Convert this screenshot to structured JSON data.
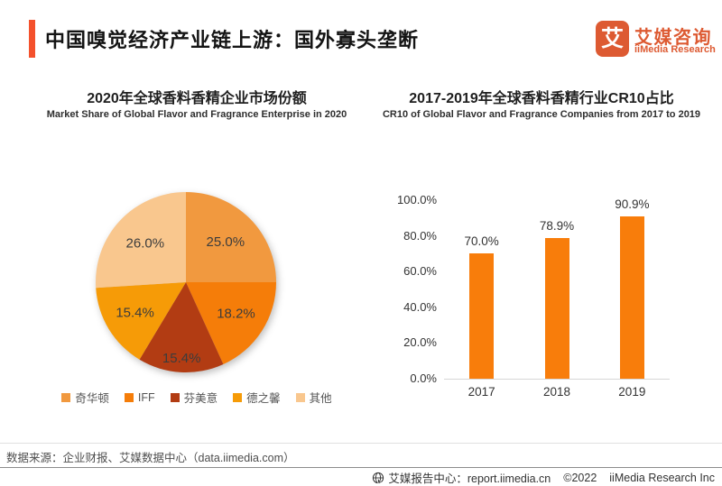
{
  "header": {
    "title": "中国嗅觉经济产业链上游：国外寡头垄断",
    "logo": {
      "glyph": "艾",
      "brand_zh": "艾媒咨询",
      "brand_en": "iiMedia Research"
    }
  },
  "pie_section": {
    "title_zh": "2020年全球香料香精企业市场份额",
    "title_en": "Market Share of Global Flavor and Fragrance Enterprise in 2020"
  },
  "bar_section": {
    "title_zh": "2017-2019年全球香料香精行业CR10占比",
    "title_en": "CR10 of Global Flavor and Fragrance Companies from 2017 to 2019"
  },
  "chart_data": [
    {
      "type": "pie",
      "title": "2020年全球香料香精企业市场份额",
      "subtitle": "Market Share of Global Flavor and Fragrance Enterprise in 2020",
      "labels": [
        "奇华顿",
        "IFF",
        "芬美意",
        "德之馨",
        "其他"
      ],
      "values": [
        25.0,
        18.2,
        15.4,
        15.4,
        26.0
      ],
      "value_labels": [
        "25.0%",
        "18.2%",
        "15.4%",
        "15.4%",
        "26.0%"
      ],
      "colors": [
        "#F1993F",
        "#F57D09",
        "#B23C13",
        "#F69B07",
        "#F9C78E"
      ],
      "start_angle_deg": -90,
      "direction": "clockwise",
      "legend_position": "bottom",
      "label_radius": [
        0.62,
        0.66,
        0.85,
        0.66,
        0.62
      ]
    },
    {
      "type": "bar",
      "title": "2017-2019年全球香料香精行业CR10占比",
      "subtitle": "CR10 of Global Flavor and Fragrance Companies from 2017 to 2019",
      "categories": [
        "2017",
        "2018",
        "2019"
      ],
      "values": [
        70.0,
        78.9,
        90.9
      ],
      "value_labels": [
        "70.0%",
        "78.9%",
        "90.9%"
      ],
      "bar_color": "#F87D0B",
      "ylim": [
        0,
        100
      ],
      "ytick_step": 20,
      "ytick_labels": [
        "0.0%",
        "20.0%",
        "40.0%",
        "60.0%",
        "80.0%",
        "100.0%"
      ],
      "grid": false,
      "legend_position": "none"
    }
  ],
  "source_note": "数据来源：企业财报、艾媒数据中心（data.iimedia.com）",
  "footer": {
    "report_center": "艾媒报告中心：report.iimedia.cn",
    "copyright": "©2022",
    "company": "iiMedia Research Inc"
  },
  "colors": {
    "accent": "#F4512C",
    "brand": "#DD5A32",
    "bar": "#F87D0B"
  }
}
